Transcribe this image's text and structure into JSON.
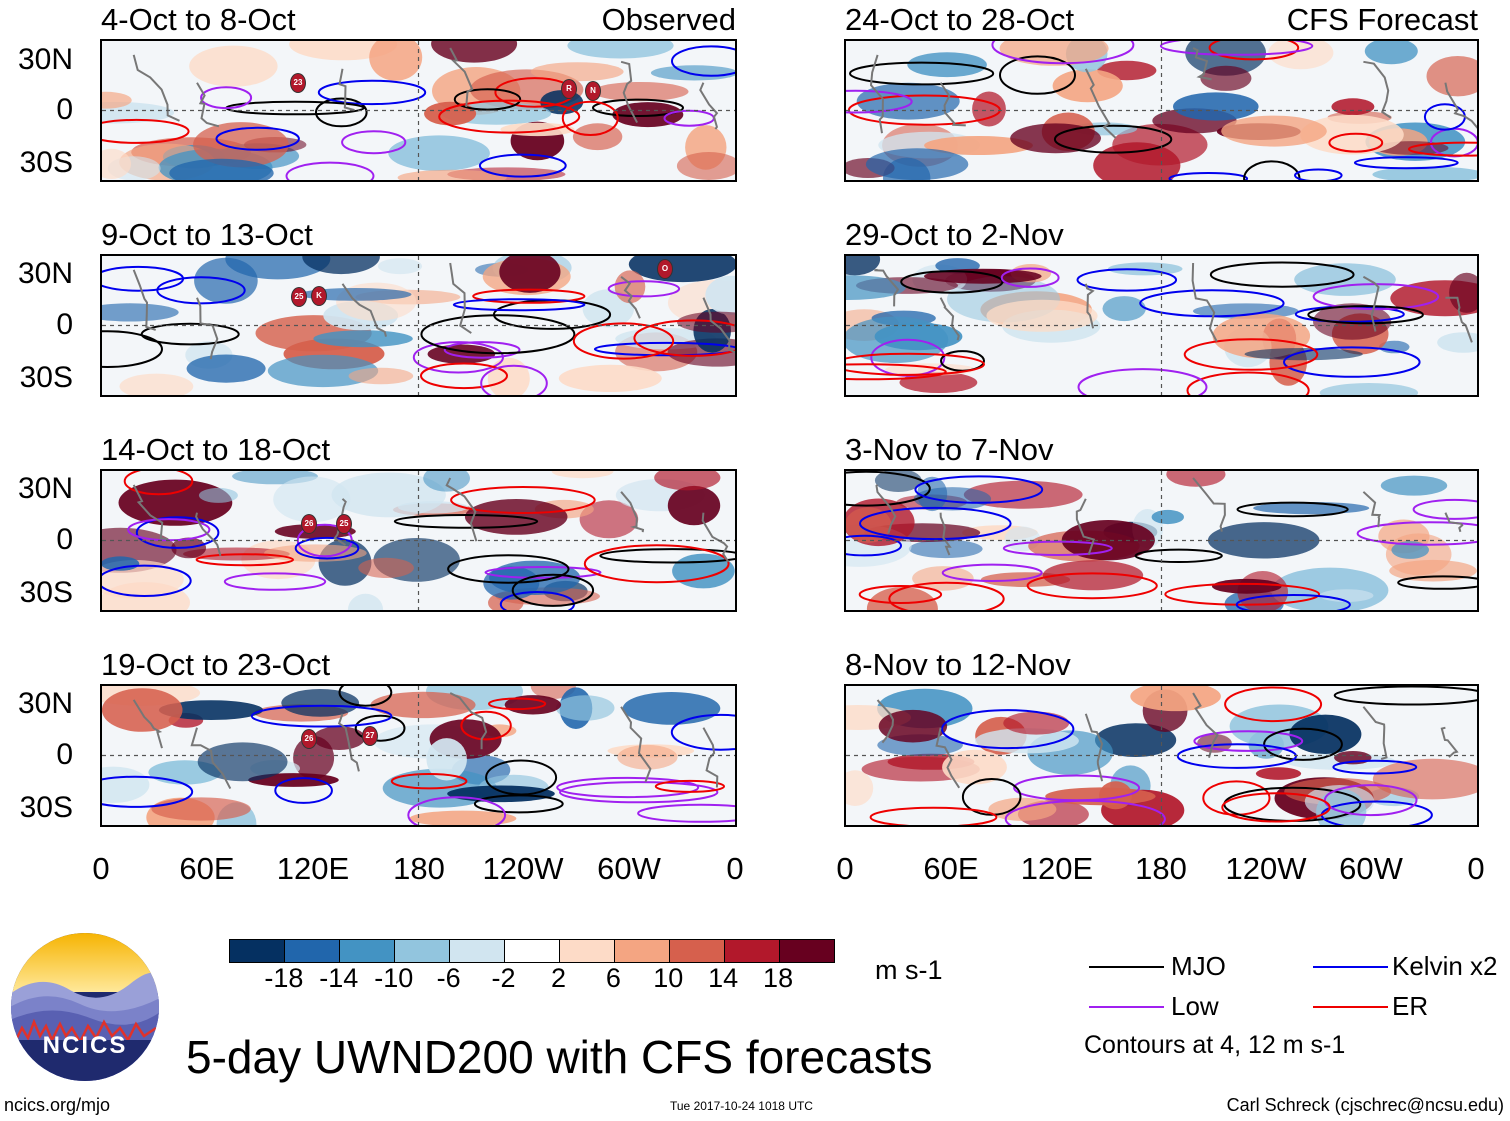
{
  "panels_observed": [
    {
      "title": "4-Oct to 8-Oct",
      "tag": "Observed",
      "storms": [
        "23",
        "R",
        "N"
      ]
    },
    {
      "title": "9-Oct to 13-Oct",
      "tag": "",
      "storms": [
        "25",
        "K",
        "O"
      ]
    },
    {
      "title": "14-Oct to 18-Oct",
      "tag": "",
      "storms": [
        "26",
        "25"
      ]
    },
    {
      "title": "19-Oct to 23-Oct",
      "tag": "",
      "storms": [
        "26",
        "27"
      ]
    }
  ],
  "panels_forecast": [
    {
      "title": "24-Oct to 28-Oct",
      "tag": "CFS Forecast"
    },
    {
      "title": "29-Oct to 2-Nov",
      "tag": ""
    },
    {
      "title": "3-Nov to 7-Nov",
      "tag": ""
    },
    {
      "title": "8-Nov to 12-Nov",
      "tag": ""
    }
  ],
  "lat_labels": [
    "30N",
    "0",
    "30S"
  ],
  "lon_labels": [
    "0",
    "60E",
    "120E",
    "180",
    "120W",
    "60W",
    "0"
  ],
  "colorbar": {
    "ticks": [
      "-18",
      "-14",
      "-10",
      "-6",
      "-2",
      "2",
      "6",
      "10",
      "14",
      "18"
    ],
    "units": "m s-1",
    "colors": [
      "#053061",
      "#2166ac",
      "#4393c3",
      "#92c5de",
      "#d1e5f0",
      "#ffffff",
      "#fddbc7",
      "#f4a582",
      "#d6604d",
      "#b2182b",
      "#67001f"
    ]
  },
  "legend": {
    "items": [
      {
        "label": "MJO",
        "color": "#000000"
      },
      {
        "label": "Kelvin x2",
        "color": "#0000ee"
      },
      {
        "label": "Low",
        "color": "#a020f0"
      },
      {
        "label": "ER",
        "color": "#ee0000"
      }
    ],
    "note": "Contours at 4, 12 m s-1"
  },
  "logo_text": "NCICS",
  "main_title": "5-day UWND200 with CFS forecasts",
  "footer": {
    "left": "ncics.org/mjo",
    "center": "Tue 2017-10-24 1018 UTC",
    "right": "Carl Schreck (cjschrec@ncsu.edu)"
  }
}
